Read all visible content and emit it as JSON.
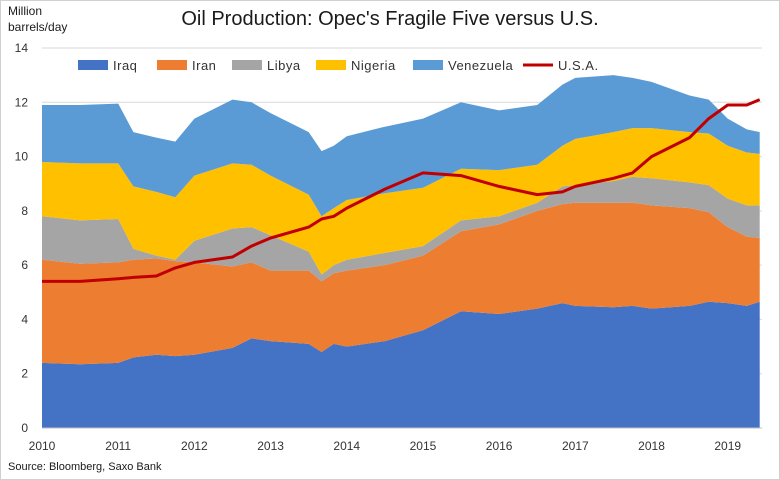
{
  "chart_data": {
    "type": "area",
    "title": "Oil Production: Opec's Fragile Five versus U.S.",
    "ylabel": "Million barrels/day",
    "ylim": [
      0,
      14
    ],
    "yticks": [
      0,
      2,
      4,
      6,
      8,
      10,
      12,
      14
    ],
    "xlim": [
      2010,
      2019.45
    ],
    "xticks": [
      2010,
      2011,
      2012,
      2013,
      2014,
      2015,
      2016,
      2017,
      2018,
      2019
    ],
    "x": [
      2010.0,
      2010.5,
      2011.0,
      2011.2,
      2011.5,
      2011.75,
      2012.0,
      2012.5,
      2012.75,
      2013.0,
      2013.5,
      2013.67,
      2013.83,
      2014.0,
      2014.5,
      2015.0,
      2015.5,
      2016.0,
      2016.5,
      2016.83,
      2017.0,
      2017.5,
      2017.75,
      2018.0,
      2018.5,
      2018.75,
      2019.0,
      2019.25,
      2019.42
    ],
    "series": [
      {
        "name": "Iraq",
        "color": "#4472c4",
        "values": [
          2.4,
          2.35,
          2.4,
          2.6,
          2.7,
          2.65,
          2.7,
          2.95,
          3.3,
          3.2,
          3.1,
          2.8,
          3.1,
          3.0,
          3.2,
          3.6,
          4.3,
          4.2,
          4.4,
          4.6,
          4.5,
          4.45,
          4.5,
          4.4,
          4.5,
          4.65,
          4.6,
          4.5,
          4.65
        ]
      },
      {
        "name": "Iran",
        "color": "#ed7d31",
        "values": [
          3.8,
          3.7,
          3.7,
          3.6,
          3.55,
          3.5,
          3.4,
          3.0,
          2.8,
          2.6,
          2.7,
          2.6,
          2.6,
          2.8,
          2.8,
          2.75,
          2.95,
          3.3,
          3.6,
          3.65,
          3.8,
          3.85,
          3.8,
          3.8,
          3.6,
          3.3,
          2.8,
          2.55,
          2.35
        ]
      },
      {
        "name": "Libya",
        "color": "#a5a5a5",
        "values": [
          1.6,
          1.6,
          1.6,
          0.4,
          0.1,
          0.05,
          0.8,
          1.4,
          1.3,
          1.3,
          0.7,
          0.25,
          0.3,
          0.4,
          0.45,
          0.35,
          0.4,
          0.3,
          0.3,
          0.65,
          0.65,
          0.8,
          0.95,
          1.0,
          0.95,
          1.0,
          1.05,
          1.15,
          1.2
        ]
      },
      {
        "name": "Nigeria",
        "color": "#ffc000",
        "values": [
          2.0,
          2.1,
          2.05,
          2.3,
          2.35,
          2.3,
          2.4,
          2.4,
          2.3,
          2.2,
          2.1,
          2.15,
          2.1,
          2.2,
          2.2,
          2.15,
          1.9,
          1.7,
          1.4,
          1.5,
          1.7,
          1.8,
          1.8,
          1.85,
          1.85,
          1.9,
          1.95,
          1.95,
          1.9
        ]
      },
      {
        "name": "Venezuela",
        "color": "#5b9bd5",
        "values": [
          2.1,
          2.15,
          2.2,
          2.0,
          2.0,
          2.05,
          2.1,
          2.35,
          2.3,
          2.3,
          2.3,
          2.4,
          2.3,
          2.35,
          2.45,
          2.55,
          2.45,
          2.2,
          2.2,
          2.25,
          2.25,
          2.1,
          1.85,
          1.7,
          1.35,
          1.25,
          1.0,
          0.85,
          0.8
        ]
      }
    ],
    "line_series": {
      "name": "U.S.A.",
      "color": "#c00000",
      "values": [
        5.4,
        5.4,
        5.5,
        5.55,
        5.6,
        5.9,
        6.1,
        6.3,
        6.7,
        7.0,
        7.4,
        7.7,
        7.8,
        8.1,
        8.8,
        9.4,
        9.3,
        8.9,
        8.6,
        8.7,
        8.9,
        9.2,
        9.4,
        10.0,
        10.7,
        11.4,
        11.9,
        11.9,
        12.1
      ]
    },
    "legend_position": "top",
    "grid": "horizontal"
  },
  "source": "Source: Bloomberg, Saxo Bank",
  "ylabel_lines": [
    "Million",
    "barrels/day"
  ]
}
